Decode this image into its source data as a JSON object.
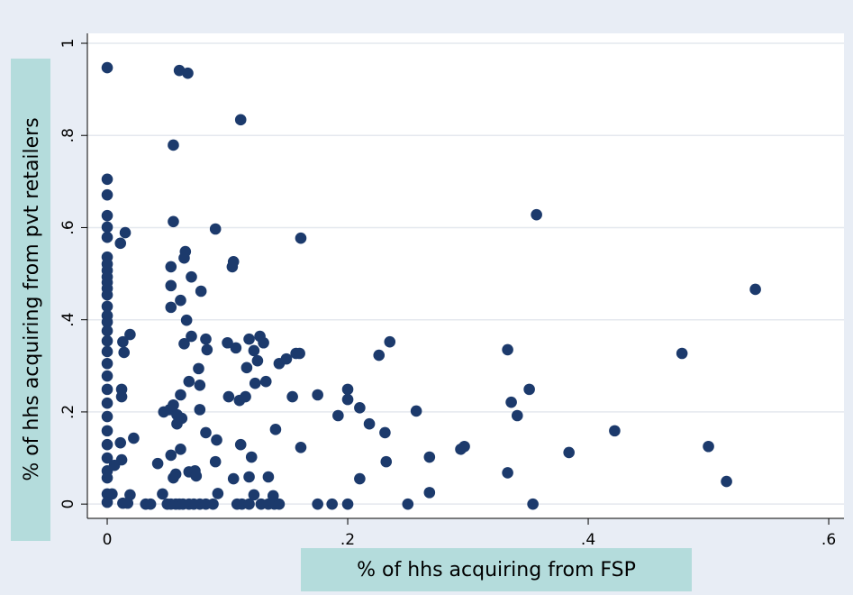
{
  "chart_data": {
    "type": "scatter",
    "x_label": "% of hhs acquiring from FSP",
    "y_label": "% of hhs acquiring from pvt retailers",
    "color": "#1c3a6c",
    "grid": true,
    "xlim": [
      -0.0165,
      0.6127
    ],
    "ylim": [
      -0.031,
      1.0215
    ],
    "xticks": [
      0,
      {
        "value": 0.2,
        "label": ".2"
      },
      {
        "value": 0.4,
        "label": ".4"
      },
      {
        "value": 0.6,
        "label": ".6"
      }
    ],
    "yticks": [
      0,
      {
        "value": 0.2,
        "label": ".2"
      },
      {
        "value": 0.4,
        "label": ".4"
      },
      {
        "value": 0.6,
        "label": ".6"
      },
      {
        "value": 0.8,
        "label": ".8"
      },
      1
    ],
    "x": [
      0,
      0,
      0,
      0,
      0,
      0,
      0,
      0,
      0,
      0,
      0,
      0,
      0,
      0,
      0,
      0,
      0,
      0,
      0,
      0,
      0,
      0,
      0,
      0,
      0,
      0,
      0,
      0,
      0,
      0,
      0,
      0.004,
      0.006,
      0.012,
      0.012,
      0.011,
      0.015,
      0.013,
      0.014,
      0.011,
      0.012,
      0.013,
      0.017,
      0.019,
      0.019,
      0.022,
      0.032,
      0.036,
      0.042,
      0.046,
      0.047,
      0.05,
      0.053,
      0.057,
      0.06,
      0.063,
      0.068,
      0.072,
      0.077,
      0.082,
      0.088,
      0.108,
      0.112,
      0.118,
      0.128,
      0.134,
      0.139,
      0.143,
      0.052,
      0.053,
      0.055,
      0.053,
      0.053,
      0.053,
      0.055,
      0.055,
      0.06,
      0.067,
      0.058,
      0.055,
      0.057,
      0.061,
      0.058,
      0.062,
      0.061,
      0.061,
      0.064,
      0.065,
      0.064,
      0.066,
      0.07,
      0.068,
      0.07,
      0.073,
      0.074,
      0.068,
      0.076,
      0.077,
      0.078,
      0.077,
      0.082,
      0.082,
      0.083,
      0.09,
      0.09,
      0.091,
      0.092,
      0.1,
      0.101,
      0.104,
      0.105,
      0.105,
      0.107,
      0.111,
      0.111,
      0.11,
      0.115,
      0.116,
      0.118,
      0.118,
      0.122,
      0.125,
      0.127,
      0.13,
      0.122,
      0.123,
      0.12,
      0.132,
      0.134,
      0.138,
      0.14,
      0.143,
      0.149,
      0.154,
      0.157,
      0.16,
      0.161,
      0.161,
      0.175,
      0.175,
      0.187,
      0.192,
      0.2,
      0.2,
      0.2,
      0.21,
      0.21,
      0.218,
      0.226,
      0.231,
      0.232,
      0.235,
      0.25,
      0.257,
      0.268,
      0.268,
      0.294,
      0.297,
      0.333,
      0.333,
      0.336,
      0.341,
      0.351,
      0.354,
      0.357,
      0.384,
      0.422,
      0.478,
      0.5,
      0.515,
      0.539
    ],
    "values": [
      0.947,
      0.705,
      0.671,
      0.626,
      0.601,
      0.579,
      0.536,
      0.521,
      0.507,
      0.493,
      0.481,
      0.468,
      0.454,
      0.429,
      0.409,
      0.395,
      0.376,
      0.354,
      0.331,
      0.305,
      0.278,
      0.249,
      0.219,
      0.19,
      0.159,
      0.129,
      0.1,
      0.072,
      0.057,
      0.022,
      0.004,
      0.022,
      0.084,
      0.249,
      0.233,
      0.566,
      0.589,
      0.352,
      0.329,
      0.133,
      0.096,
      0.002,
      0.002,
      0.02,
      0.368,
      0.143,
      0,
      0,
      0.088,
      0.022,
      0.2,
      0,
      0,
      0,
      0,
      0,
      0,
      0,
      0,
      0,
      0,
      0,
      0,
      0,
      0,
      0,
      0,
      0,
      0.205,
      0.106,
      0.215,
      0.427,
      0.474,
      0.515,
      0.613,
      0.779,
      0.941,
      0.935,
      0.194,
      0.057,
      0.065,
      0.119,
      0.174,
      0.186,
      0.237,
      0.442,
      0.534,
      0.548,
      0.348,
      0.399,
      0.493,
      0.07,
      0.364,
      0.072,
      0.061,
      0.266,
      0.294,
      0.258,
      0.462,
      0.205,
      0.155,
      0.358,
      0.335,
      0.597,
      0.092,
      0.139,
      0.023,
      0.35,
      0.233,
      0.515,
      0.526,
      0.055,
      0.339,
      0.834,
      0.129,
      0.225,
      0.233,
      0.296,
      0.059,
      0.358,
      0.333,
      0.311,
      0.364,
      0.35,
      0.02,
      0.262,
      0.102,
      0.266,
      0.059,
      0.018,
      0.162,
      0.305,
      0.315,
      0.233,
      0.327,
      0.327,
      0.577,
      0.123,
      0.237,
      0,
      0,
      0.192,
      0.249,
      0.227,
      0,
      0.209,
      0.055,
      0.174,
      0.323,
      0.155,
      0.092,
      0.352,
      0,
      0.202,
      0.102,
      0.025,
      0.119,
      0.125,
      0.335,
      0.068,
      0.221,
      0.192,
      0.249,
      0,
      0.628,
      0.112,
      0.159,
      0.327,
      0.125,
      0.049,
      0.466
    ]
  }
}
